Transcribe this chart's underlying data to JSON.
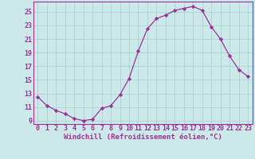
{
  "x": [
    0,
    1,
    2,
    3,
    4,
    5,
    6,
    7,
    8,
    9,
    10,
    11,
    12,
    13,
    14,
    15,
    16,
    17,
    18,
    19,
    20,
    21,
    22,
    23
  ],
  "y": [
    12.5,
    11.2,
    10.5,
    10.0,
    9.3,
    9.0,
    9.2,
    10.8,
    11.2,
    12.8,
    15.2,
    19.2,
    22.5,
    24.0,
    24.5,
    25.2,
    25.5,
    25.8,
    25.2,
    22.8,
    21.0,
    18.5,
    16.5,
    15.5
  ],
  "line_color": "#993399",
  "marker": "D",
  "marker_size": 2.2,
  "bg_color": "#cce8e8",
  "grid_color": "#aad4d4",
  "xlabel": "Windchill (Refroidissement éolien,°C)",
  "ylabel": "",
  "xlim": [
    -0.5,
    23.5
  ],
  "ylim": [
    8.5,
    26.5
  ],
  "yticks": [
    9,
    11,
    13,
    15,
    17,
    19,
    21,
    23,
    25
  ],
  "xticks": [
    0,
    1,
    2,
    3,
    4,
    5,
    6,
    7,
    8,
    9,
    10,
    11,
    12,
    13,
    14,
    15,
    16,
    17,
    18,
    19,
    20,
    21,
    22,
    23
  ],
  "xlabel_fontsize": 6.5,
  "tick_fontsize": 6.0,
  "tick_color": "#993399",
  "spine_color": "#993399",
  "axis_bg": "#cce8e8"
}
